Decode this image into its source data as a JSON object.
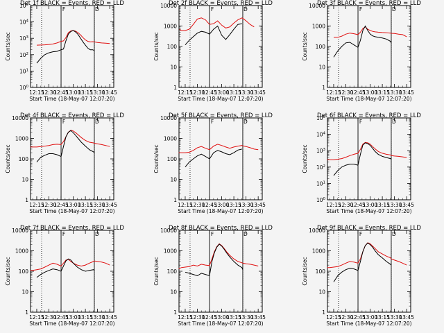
{
  "figure": {
    "xlabel": "Start Time (18-May-07 12:07:20)",
    "ylabel": "Counts/sec",
    "x_ticks": [
      "12:15",
      "12:30",
      "12:45",
      "13:00",
      "13:15",
      "13:30",
      "13:45"
    ],
    "x_range": [
      "12:07:20",
      "13:50:00"
    ],
    "y_scale": "log",
    "series_colors": {
      "events": "#000000",
      "lld": "#e01010"
    },
    "markers": {
      "dotted_lines": [
        "12:21",
        "13:26"
      ],
      "solid_lines": [
        "12:45",
        "13:26"
      ],
      "letters": {
        "12:45": "F",
        "13:26": "D"
      }
    }
  },
  "chart_data": [
    {
      "type": "line",
      "title": "Det 1f BLACK = Events, RED = LLD",
      "y_ticks": [
        "10^0",
        "10^1",
        "10^2",
        "10^3",
        "10^4",
        "10^5"
      ],
      "ylim": [
        1,
        100000
      ],
      "x": [
        "12:15",
        "12:20",
        "12:25",
        "12:30",
        "12:35",
        "12:40",
        "12:45",
        "12:48",
        "12:51",
        "12:54",
        "12:57",
        "13:00",
        "13:03",
        "13:06",
        "13:09",
        "13:12",
        "13:15",
        "13:18",
        "13:21",
        "13:24",
        "13:26",
        "13:30",
        "13:35",
        "13:40",
        "13:45"
      ],
      "series": [
        {
          "role": "lld",
          "values": [
            380,
            390,
            400,
            420,
            450,
            520,
            650,
            700,
            1100,
            2200,
            2800,
            3000,
            2700,
            2200,
            1600,
            1100,
            800,
            650,
            600,
            620,
            600,
            550,
            520,
            500,
            480
          ]
        },
        {
          "role": "events",
          "values": [
            30,
            60,
            100,
            130,
            150,
            160,
            200,
            220,
            700,
            1800,
            2600,
            3000,
            2400,
            1700,
            1000,
            600,
            380,
            250,
            200,
            200,
            180,
            null,
            null,
            null,
            null
          ]
        }
      ]
    },
    {
      "type": "line",
      "title": "Det 2f BLACK = Events, RED = LLD",
      "y_ticks": [
        "1",
        "10",
        "100",
        "1000",
        "10000"
      ],
      "ylim": [
        1,
        10000
      ],
      "x": [
        "12:08",
        "12:10",
        "12:15",
        "12:20",
        "12:25",
        "12:30",
        "12:35",
        "12:40",
        "12:45",
        "12:50",
        "12:55",
        "13:00",
        "13:05",
        "13:10",
        "13:15",
        "13:20",
        "13:25",
        "13:26",
        "13:30",
        "13:35",
        "13:40"
      ],
      "series": [
        {
          "role": "lld",
          "values": [
            700,
            600,
            600,
            700,
            1200,
            2200,
            2500,
            2000,
            1200,
            1300,
            1800,
            1100,
            800,
            900,
            1400,
            2000,
            2500,
            2400,
            1800,
            1200,
            900
          ]
        },
        {
          "role": "events",
          "values": [
            null,
            null,
            120,
            200,
            300,
            450,
            550,
            500,
            400,
            700,
            1000,
            350,
            220,
            380,
            700,
            1200,
            1300,
            null,
            null,
            null,
            null
          ]
        }
      ]
    },
    {
      "type": "line",
      "title": "Det 3f BLACK = Events, RED = LLD",
      "y_ticks": [
        "1",
        "10",
        "100",
        "1000",
        "10000"
      ],
      "ylim": [
        1,
        10000
      ],
      "x": [
        "12:08",
        "12:10",
        "12:15",
        "12:20",
        "12:25",
        "12:30",
        "12:35",
        "12:40",
        "12:45",
        "12:48",
        "12:51",
        "12:54",
        "12:57",
        "13:00",
        "13:03",
        "13:06",
        "13:10",
        "13:15",
        "13:20",
        "13:25",
        "13:26",
        "13:30",
        "13:35",
        "13:40",
        "13:45"
      ],
      "series": [
        {
          "role": "lld",
          "values": [
            null,
            null,
            280,
            280,
            320,
            400,
            450,
            420,
            380,
            500,
            750,
            900,
            700,
            600,
            550,
            520,
            500,
            480,
            470,
            450,
            440,
            430,
            400,
            380,
            300
          ]
        },
        {
          "role": "events",
          "values": [
            null,
            null,
            30,
            60,
            100,
            150,
            160,
            120,
            90,
            200,
            600,
            1000,
            600,
            400,
            330,
            300,
            280,
            260,
            230,
            180,
            150,
            null,
            null,
            null,
            null
          ]
        }
      ]
    },
    {
      "type": "line",
      "title": "Det 4f BLACK = Events, RED = LLD",
      "y_ticks": [
        "1",
        "10",
        "100",
        "1000",
        "10000"
      ],
      "ylim": [
        1,
        10000
      ],
      "x": [
        "12:07",
        "12:10",
        "12:15",
        "12:20",
        "12:25",
        "12:30",
        "12:35",
        "12:40",
        "12:45",
        "12:48",
        "12:51",
        "12:54",
        "12:57",
        "13:00",
        "13:03",
        "13:06",
        "13:10",
        "13:15",
        "13:20",
        "13:25",
        "13:26",
        "13:30",
        "13:35",
        "13:40",
        "13:45"
      ],
      "series": [
        {
          "role": "lld",
          "values": [
            380,
            380,
            380,
            400,
            420,
            450,
            500,
            520,
            500,
            700,
            1200,
            2000,
            2500,
            2300,
            1900,
            1500,
            1100,
            800,
            650,
            600,
            580,
            540,
            500,
            450,
            400
          ]
        },
        {
          "role": "events",
          "values": [
            null,
            null,
            70,
            120,
            150,
            180,
            180,
            160,
            130,
            400,
            1200,
            2000,
            2400,
            1900,
            1400,
            1000,
            650,
            420,
            280,
            220,
            200,
            null,
            null,
            null,
            null
          ]
        }
      ]
    },
    {
      "type": "line",
      "title": "Det 5f BLACK = Events, RED = LLD",
      "y_ticks": [
        "1",
        "10",
        "100",
        "1000",
        "10000"
      ],
      "ylim": [
        1,
        10000
      ],
      "x": [
        "12:07",
        "12:10",
        "12:15",
        "12:20",
        "12:25",
        "12:30",
        "12:35",
        "12:40",
        "12:45",
        "12:50",
        "12:55",
        "13:00",
        "13:05",
        "13:10",
        "13:15",
        "13:20",
        "13:25",
        "13:26",
        "13:30",
        "13:35",
        "13:40",
        "13:45"
      ],
      "series": [
        {
          "role": "lld",
          "values": [
            200,
            200,
            200,
            210,
            260,
            350,
            400,
            330,
            280,
            420,
            520,
            450,
            380,
            330,
            380,
            420,
            450,
            430,
            400,
            350,
            300,
            280
          ]
        },
        {
          "role": "events",
          "values": [
            null,
            null,
            40,
            70,
            100,
            140,
            170,
            130,
            100,
            200,
            260,
            220,
            180,
            160,
            200,
            270,
            300,
            null,
            null,
            null,
            null,
            null
          ]
        }
      ]
    },
    {
      "type": "line",
      "title": "Det 6f BLACK = Events, RED = LLD",
      "y_ticks": [
        "10^0",
        "10^1",
        "10^2",
        "10^3",
        "10^4",
        "10^5"
      ],
      "ylim": [
        1,
        100000
      ],
      "x": [
        "12:07",
        "12:10",
        "12:15",
        "12:20",
        "12:25",
        "12:30",
        "12:35",
        "12:40",
        "12:45",
        "12:48",
        "12:51",
        "12:54",
        "12:57",
        "13:00",
        "13:03",
        "13:06",
        "13:10",
        "13:15",
        "13:20",
        "13:25",
        "13:26",
        "13:30",
        "13:35",
        "13:40",
        "13:45"
      ],
      "series": [
        {
          "role": "lld",
          "values": [
            280,
            280,
            280,
            300,
            330,
            400,
            500,
            600,
            700,
            1200,
            2500,
            3200,
            3000,
            2500,
            1800,
            1300,
            900,
            700,
            600,
            550,
            500,
            470,
            450,
            420,
            380
          ]
        },
        {
          "role": "events",
          "values": [
            null,
            null,
            30,
            60,
            100,
            130,
            150,
            150,
            130,
            600,
            2200,
            3000,
            2700,
            2100,
            1400,
            900,
            600,
            450,
            380,
            330,
            300,
            null,
            null,
            null,
            null
          ]
        }
      ]
    },
    {
      "type": "line",
      "title": "Det 7f BLACK = Events, RED = LLD",
      "y_ticks": [
        "1",
        "10",
        "100",
        "1000",
        "10000"
      ],
      "ylim": [
        1,
        10000
      ],
      "x": [
        "12:07",
        "12:10",
        "12:15",
        "12:20",
        "12:25",
        "12:30",
        "12:35",
        "12:40",
        "12:45",
        "12:48",
        "12:51",
        "12:54",
        "12:57",
        "13:00",
        "13:05",
        "13:10",
        "13:15",
        "13:20",
        "13:25",
        "13:26",
        "13:30",
        "13:35",
        "13:40",
        "13:45"
      ],
      "series": [
        {
          "role": "lld",
          "values": [
            110,
            110,
            120,
            130,
            160,
            200,
            250,
            220,
            180,
            250,
            350,
            380,
            300,
            250,
            200,
            180,
            200,
            250,
            300,
            320,
            300,
            280,
            250,
            200
          ]
        },
        {
          "role": "events",
          "values": [
            null,
            null,
            50,
            70,
            90,
            110,
            130,
            120,
            100,
            180,
            320,
            400,
            350,
            250,
            160,
            120,
            100,
            110,
            120,
            110,
            null,
            null,
            null,
            null
          ]
        }
      ]
    },
    {
      "type": "line",
      "title": "Det 8f BLACK = Events, RED = LLD",
      "y_ticks": [
        "1",
        "10",
        "100",
        "1000",
        "10000"
      ],
      "ylim": [
        1,
        10000
      ],
      "x": [
        "12:07",
        "12:10",
        "12:15",
        "12:20",
        "12:25",
        "12:30",
        "12:35",
        "12:40",
        "12:45",
        "12:48",
        "12:51",
        "12:54",
        "12:57",
        "13:00",
        "13:03",
        "13:06",
        "13:10",
        "13:15",
        "13:20",
        "13:25",
        "13:26",
        "13:30",
        "13:35",
        "13:40",
        "13:45"
      ],
      "series": [
        {
          "role": "lld",
          "values": [
            130,
            150,
            160,
            170,
            200,
            180,
            220,
            200,
            190,
            400,
            900,
            1600,
            2200,
            1800,
            1300,
            900,
            600,
            400,
            300,
            260,
            250,
            230,
            220,
            200,
            180
          ]
        },
        {
          "role": "events",
          "values": [
            null,
            null,
            90,
            80,
            70,
            60,
            80,
            70,
            60,
            300,
            800,
            1500,
            2100,
            1700,
            1200,
            800,
            500,
            300,
            200,
            150,
            120,
            null,
            null,
            null,
            null
          ]
        }
      ]
    },
    {
      "type": "line",
      "title": "Det 9f BLACK = Events, RED = LLD",
      "y_ticks": [
        "1",
        "10",
        "100",
        "1000",
        "10000"
      ],
      "ylim": [
        1,
        10000
      ],
      "x": [
        "12:07",
        "12:10",
        "12:15",
        "12:20",
        "12:25",
        "12:30",
        "12:35",
        "12:40",
        "12:45",
        "12:48",
        "12:51",
        "12:54",
        "12:57",
        "13:00",
        "13:03",
        "13:06",
        "13:10",
        "13:15",
        "13:20",
        "13:25",
        "13:26",
        "13:30",
        "13:35",
        "13:40",
        "13:45"
      ],
      "series": [
        {
          "role": "lld",
          "values": [
            150,
            150,
            160,
            170,
            200,
            250,
            300,
            280,
            250,
            400,
            900,
            1800,
            2500,
            2200,
            1700,
            1300,
            900,
            700,
            550,
            450,
            400,
            350,
            300,
            250,
            200
          ]
        },
        {
          "role": "events",
          "values": [
            null,
            null,
            30,
            60,
            90,
            120,
            140,
            130,
            110,
            300,
            900,
            1800,
            2400,
            2000,
            1500,
            1000,
            650,
            450,
            300,
            220,
            200,
            null,
            null,
            null,
            null
          ]
        }
      ]
    }
  ]
}
